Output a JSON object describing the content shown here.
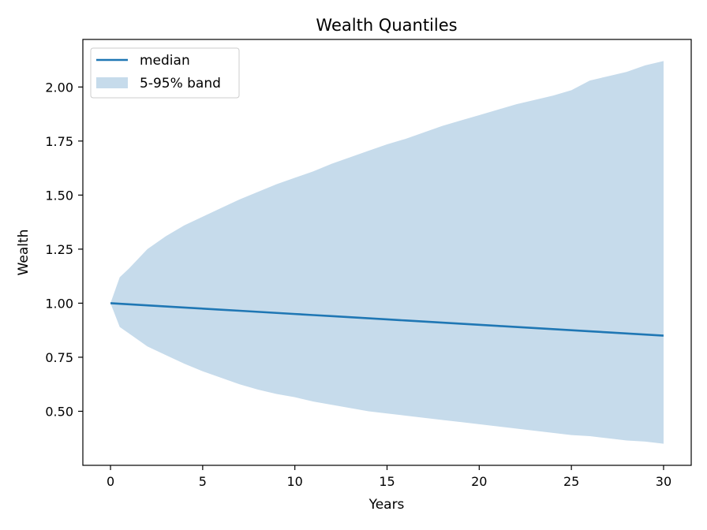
{
  "chart_data": {
    "type": "area",
    "title": "Wealth Quantiles",
    "xlabel": "Years",
    "ylabel": "Wealth",
    "xlim": [
      -1.5,
      31.5
    ],
    "ylim": [
      0.25,
      2.22
    ],
    "xticks": [
      0,
      5,
      10,
      15,
      20,
      25,
      30
    ],
    "xtick_labels": [
      "0",
      "5",
      "10",
      "15",
      "20",
      "25",
      "30"
    ],
    "yticks": [
      0.5,
      0.75,
      1.0,
      1.25,
      1.5,
      1.75,
      2.0
    ],
    "ytick_labels": [
      "0.50",
      "0.75",
      "1.00",
      "1.25",
      "1.50",
      "1.75",
      "2.00"
    ],
    "grid": false,
    "legend_position": "upper-left",
    "legend": [
      "median",
      "5-95% band"
    ],
    "colors": {
      "median": "#1f77b4",
      "band": "#c6dbeb"
    },
    "series": [
      {
        "name": "median",
        "kind": "line",
        "x": [
          0,
          1,
          2,
          3,
          4,
          5,
          6,
          7,
          8,
          9,
          10,
          11,
          12,
          13,
          14,
          15,
          16,
          17,
          18,
          19,
          20,
          21,
          22,
          23,
          24,
          25,
          26,
          27,
          28,
          29,
          30
        ],
        "y": [
          1.0,
          0.995,
          0.99,
          0.985,
          0.98,
          0.975,
          0.97,
          0.965,
          0.96,
          0.955,
          0.95,
          0.945,
          0.94,
          0.935,
          0.93,
          0.925,
          0.92,
          0.915,
          0.91,
          0.905,
          0.9,
          0.895,
          0.89,
          0.885,
          0.88,
          0.875,
          0.87,
          0.865,
          0.86,
          0.855,
          0.85
        ]
      },
      {
        "name": "5-95% band",
        "kind": "band",
        "x": [
          0,
          0.5,
          1,
          2,
          3,
          4,
          5,
          6,
          7,
          8,
          9,
          10,
          11,
          12,
          13,
          14,
          15,
          16,
          17,
          18,
          19,
          20,
          21,
          22,
          23,
          24,
          25,
          26,
          27,
          28,
          29,
          30
        ],
        "lower": [
          1.0,
          0.89,
          0.86,
          0.8,
          0.76,
          0.72,
          0.685,
          0.655,
          0.625,
          0.6,
          0.58,
          0.565,
          0.545,
          0.53,
          0.515,
          0.5,
          0.49,
          0.48,
          0.47,
          0.46,
          0.45,
          0.44,
          0.43,
          0.42,
          0.41,
          0.4,
          0.39,
          0.385,
          0.375,
          0.365,
          0.36,
          0.35
        ],
        "upper": [
          1.0,
          1.12,
          1.16,
          1.25,
          1.31,
          1.36,
          1.4,
          1.44,
          1.48,
          1.515,
          1.55,
          1.58,
          1.61,
          1.645,
          1.675,
          1.705,
          1.735,
          1.76,
          1.79,
          1.82,
          1.845,
          1.87,
          1.895,
          1.92,
          1.94,
          1.96,
          1.985,
          2.03,
          2.05,
          2.07,
          2.1,
          2.12
        ]
      }
    ]
  }
}
